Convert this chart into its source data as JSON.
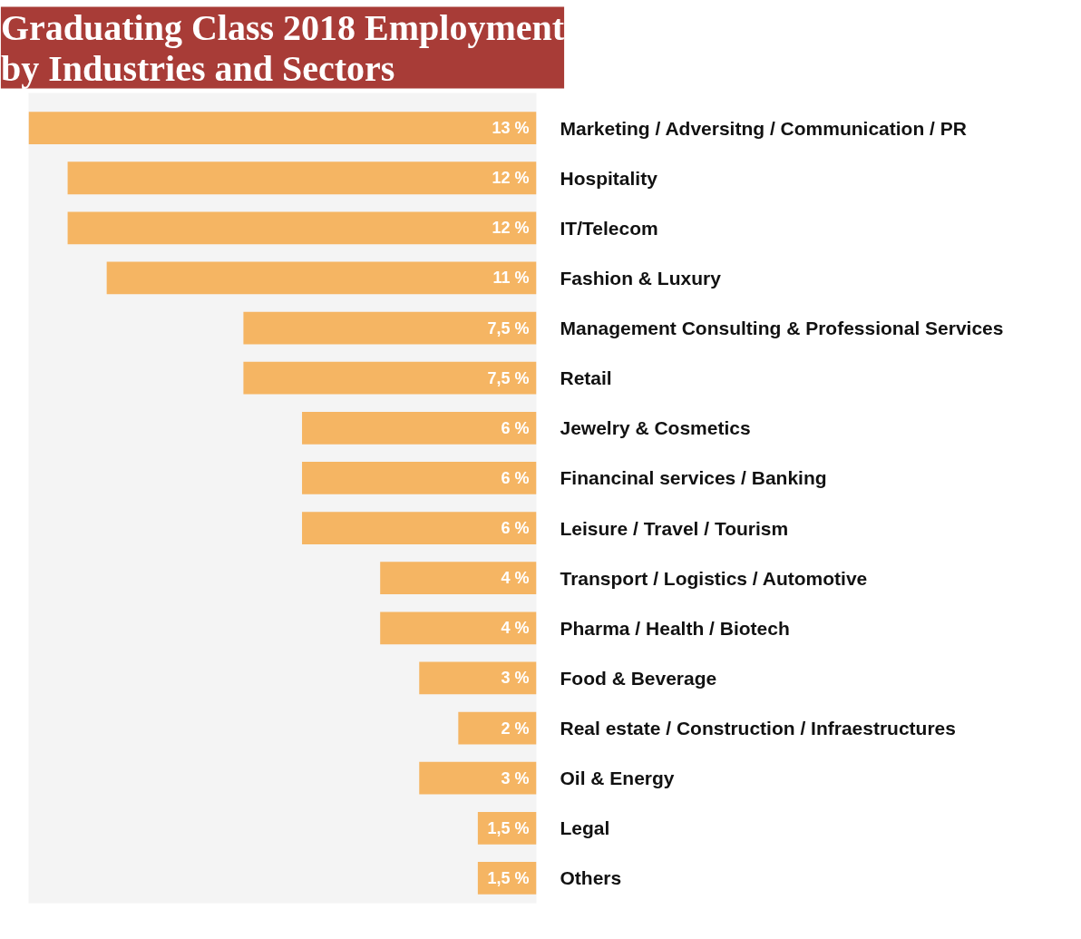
{
  "chart_data": {
    "type": "bar",
    "orientation": "horizontal",
    "title": "Graduating Class 2018 Employment\nby Industries and Sectors",
    "categories": [
      "Marketing / Adversitng / Communication / PR",
      "Hospitality",
      "IT/Telecom",
      "Fashion & Luxury",
      "Management Consulting & Professional Services",
      "Retail",
      "Jewelry & Cosmetics",
      "Financinal services / Banking",
      "Leisure / Travel / Tourism",
      "Transport / Logistics / Automotive",
      "Pharma / Health / Biotech",
      "Food & Beverage",
      "Real estate / Construction / Infraestructures",
      "Oil & Energy",
      "Legal",
      "Others"
    ],
    "values": [
      13,
      12,
      12,
      11,
      7.5,
      7.5,
      6,
      6,
      6,
      4,
      4,
      3,
      2,
      3,
      1.5,
      1.5
    ],
    "value_labels": [
      "13 %",
      "12 %",
      "12 %",
      "11 %",
      "7,5 %",
      "7,5 %",
      "6 %",
      "6 %",
      "6 %",
      "4 %",
      "4 %",
      "3 %",
      "2 %",
      "3 %",
      "1,5 %",
      "1,5 %"
    ],
    "color": "#f5b563",
    "tick_labels": "y"
  }
}
